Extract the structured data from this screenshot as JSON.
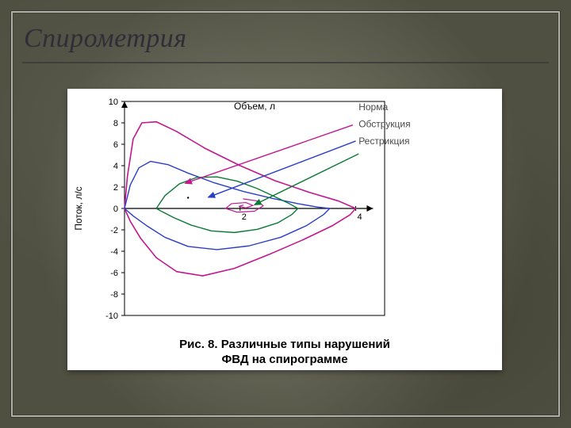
{
  "slide": {
    "title": "Спирометрия",
    "background_color": "#6a6b57",
    "frame_color": "#f2eedd",
    "title_color": "#2e2e38",
    "title_fontsize": 34
  },
  "chart": {
    "type": "line",
    "card_bg": "#ffffff",
    "plot_border_color": "#000000",
    "axis_color": "#000000",
    "xlabel": "Объем, л",
    "ylabel": "Поток, л/с",
    "label_fontsize": 12,
    "tick_fontsize": 11,
    "xlim": [
      0,
      4.5
    ],
    "ylim": [
      -10,
      10
    ],
    "ytick_step": 2,
    "yticks": [
      -10,
      -8,
      -6,
      -4,
      -2,
      0,
      2,
      4,
      6,
      8,
      10
    ],
    "xticks": [
      2,
      4
    ],
    "series": {
      "norma": {
        "label": "Норма",
        "color": "#c2188f",
        "width": 1.6,
        "points": [
          [
            0.0,
            0.0
          ],
          [
            0.05,
            3.0
          ],
          [
            0.15,
            6.5
          ],
          [
            0.3,
            8.0
          ],
          [
            0.55,
            8.1
          ],
          [
            0.9,
            7.2
          ],
          [
            1.4,
            5.6
          ],
          [
            2.0,
            4.0
          ],
          [
            2.6,
            2.6
          ],
          [
            3.2,
            1.5
          ],
          [
            3.7,
            0.7
          ],
          [
            4.0,
            0.0
          ],
          [
            3.9,
            -0.6
          ],
          [
            3.6,
            -1.6
          ],
          [
            3.1,
            -2.9
          ],
          [
            2.5,
            -4.3
          ],
          [
            1.9,
            -5.6
          ],
          [
            1.35,
            -6.3
          ],
          [
            0.9,
            -5.9
          ],
          [
            0.55,
            -4.6
          ],
          [
            0.28,
            -2.8
          ],
          [
            0.1,
            -1.2
          ],
          [
            0.0,
            0.0
          ]
        ],
        "arrow": {
          "from": [
            3.95,
            7.8
          ],
          "to": [
            1.05,
            2.35
          ]
        }
      },
      "obstruction": {
        "label": "Обструкция",
        "color": "#2a3fc5",
        "width": 1.4,
        "points": [
          [
            0.0,
            0.0
          ],
          [
            0.1,
            2.2
          ],
          [
            0.25,
            3.8
          ],
          [
            0.45,
            4.4
          ],
          [
            0.75,
            4.1
          ],
          [
            1.1,
            3.3
          ],
          [
            1.55,
            2.4
          ],
          [
            2.05,
            1.6
          ],
          [
            2.55,
            0.95
          ],
          [
            3.0,
            0.45
          ],
          [
            3.35,
            0.12
          ],
          [
            3.55,
            0.0
          ],
          [
            3.45,
            -0.55
          ],
          [
            3.15,
            -1.6
          ],
          [
            2.7,
            -2.7
          ],
          [
            2.15,
            -3.5
          ],
          [
            1.6,
            -3.85
          ],
          [
            1.1,
            -3.55
          ],
          [
            0.7,
            -2.7
          ],
          [
            0.38,
            -1.6
          ],
          [
            0.15,
            -0.7
          ],
          [
            0.0,
            0.0
          ]
        ],
        "arrow": {
          "from": [
            4.0,
            6.3
          ],
          "to": [
            1.45,
            1.05
          ]
        }
      },
      "restriction": {
        "label": "Рестрикция",
        "color": "#0a7a36",
        "width": 1.4,
        "points": [
          [
            0.55,
            0.0
          ],
          [
            0.7,
            1.2
          ],
          [
            0.95,
            2.3
          ],
          [
            1.25,
            2.9
          ],
          [
            1.6,
            2.95
          ],
          [
            1.95,
            2.55
          ],
          [
            2.3,
            1.85
          ],
          [
            2.6,
            1.1
          ],
          [
            2.85,
            0.45
          ],
          [
            3.0,
            0.0
          ],
          [
            2.9,
            -0.55
          ],
          [
            2.65,
            -1.35
          ],
          [
            2.3,
            -1.95
          ],
          [
            1.9,
            -2.25
          ],
          [
            1.5,
            -2.1
          ],
          [
            1.15,
            -1.55
          ],
          [
            0.85,
            -0.85
          ],
          [
            0.65,
            -0.3
          ],
          [
            0.55,
            0.0
          ]
        ],
        "arrow": {
          "from": [
            4.05,
            5.1
          ],
          "to": [
            2.25,
            0.35
          ]
        }
      }
    },
    "center_swirl": {
      "color": "#c2188f",
      "points": [
        [
          2.05,
          0.9
        ],
        [
          2.3,
          0.7
        ],
        [
          2.4,
          0.25
        ],
        [
          2.25,
          -0.25
        ],
        [
          1.95,
          -0.35
        ],
        [
          1.75,
          0.0
        ],
        [
          1.85,
          0.45
        ],
        [
          2.1,
          0.55
        ],
        [
          2.22,
          0.28
        ],
        [
          2.1,
          0.05
        ],
        [
          1.98,
          0.2
        ],
        [
          2.06,
          0.32
        ]
      ]
    },
    "legend": {
      "x": 4.05,
      "y_start": 9.2,
      "dy": 1.6,
      "fontsize": 12,
      "colors": {
        "norma": "#4a4a4a",
        "obstruction": "#4a4a4a",
        "restriction": "#4a4a4a"
      }
    },
    "caption": {
      "line1": "Рис. 8. Различные типы нарушений",
      "line2": "ФВД на спирограмме",
      "fontsize": 15,
      "color": "#000000"
    }
  }
}
